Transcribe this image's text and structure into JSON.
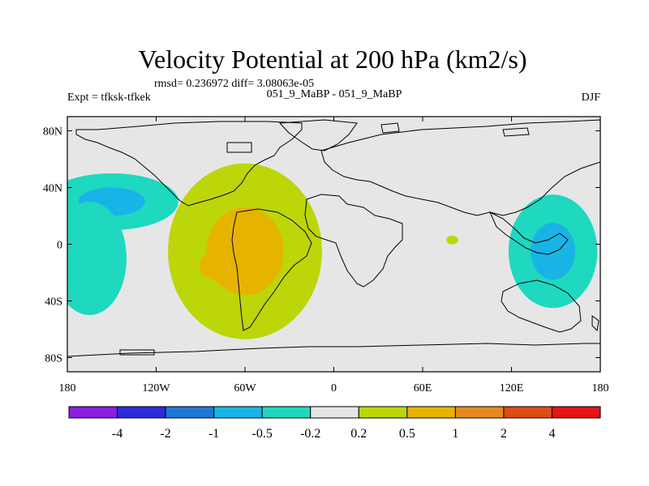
{
  "chart_data": {
    "type": "contour_map",
    "title": "Velocity Potential at 200 hPa (km2/s)",
    "stats_line": "rmsd= 0.236972 diff= 3.08063e-05",
    "left_label": "Expt = tfksk-tfkek",
    "center_label": "051_9_MaBP - 051_9_MaBP",
    "right_label": "DJF",
    "x_range": [
      -180,
      180
    ],
    "y_range": [
      -90,
      90
    ],
    "x_ticks": [
      {
        "value": -180,
        "label": "180"
      },
      {
        "value": -120,
        "label": "120W"
      },
      {
        "value": -60,
        "label": "60W"
      },
      {
        "value": 0,
        "label": "0"
      },
      {
        "value": 60,
        "label": "60E"
      },
      {
        "value": 120,
        "label": "120E"
      },
      {
        "value": 180,
        "label": "180"
      }
    ],
    "y_ticks": [
      {
        "value": 80,
        "label": "80N"
      },
      {
        "value": 40,
        "label": "40N"
      },
      {
        "value": 0,
        "label": "0"
      },
      {
        "value": -40,
        "label": "40S"
      },
      {
        "value": -80,
        "label": "80S"
      }
    ],
    "contour_levels": [
      -4,
      -2,
      -1,
      -0.5,
      -0.2,
      0.2,
      0.5,
      1,
      2,
      4
    ],
    "level_labels": [
      "-4",
      "-2",
      "-1",
      "-0.5",
      "-0.2",
      "0.2",
      "0.5",
      "1",
      "2",
      "4"
    ],
    "level_colors": [
      "#8a1ee0",
      "#2b2bd9",
      "#1f78d6",
      "#19b4e6",
      "#1ed8c0",
      "#e6e6e6",
      "#bcd60a",
      "#e6b400",
      "#e68a1e",
      "#e04a14",
      "#e61414"
    ],
    "anomalies": [
      {
        "name": "atlantic-high",
        "lon": -60,
        "lat": -5,
        "rx": 52,
        "ry": 62,
        "levels": [
          0.2,
          0.5
        ]
      },
      {
        "name": "south-america-core",
        "lon": -63,
        "lat": -15,
        "rx": 28,
        "ry": 14,
        "levels": [
          0.5
        ]
      },
      {
        "name": "north-pacific-low",
        "lon": -150,
        "lat": 30,
        "rx": 45,
        "ry": 20,
        "levels": [
          -0.2,
          -0.5
        ]
      },
      {
        "name": "east-pacific-low",
        "lon": -165,
        "lat": -10,
        "rx": 25,
        "ry": 40,
        "levels": [
          -0.2
        ]
      },
      {
        "name": "west-pacific-low",
        "lon": 148,
        "lat": -5,
        "rx": 30,
        "ry": 40,
        "levels": [
          -0.2,
          -0.5
        ]
      },
      {
        "name": "indian-ocean-small",
        "lon": 80,
        "lat": 3,
        "rx": 4,
        "ry": 3,
        "levels": [
          0.2
        ]
      }
    ],
    "grid": false,
    "colorbar_position": "bottom"
  }
}
